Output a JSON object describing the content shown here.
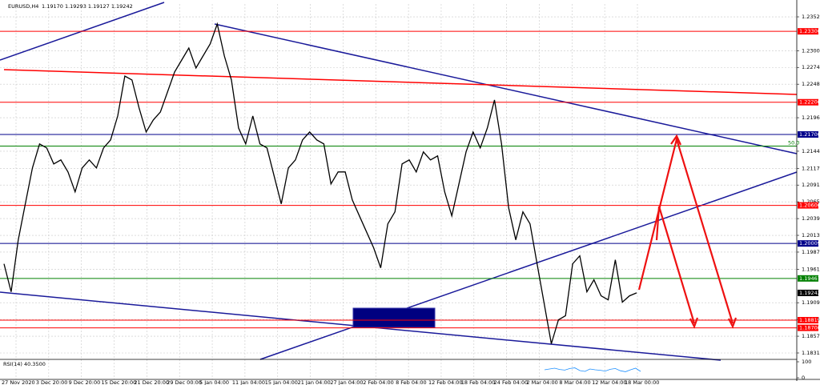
{
  "header": {
    "symbol": "EURUSD,H4",
    "ohlc": "1.19170 1.19293 1.19127 1.19242"
  },
  "chart_data": {
    "type": "line",
    "ylim": [
      1.18223,
      1.23724
    ],
    "yticks": [
      1.23525,
      {
        "value": 1.23,
        "label": "1.23000"
      },
      {
        "value": 1.2274,
        "label": "1.22740"
      },
      {
        "value": 1.2248,
        "label": "1.22480"
      },
      {
        "value": 1.2196,
        "label": "1.21960"
      },
      {
        "value": 1.2144,
        "label": "1.21440"
      },
      1.21175,
      1.20915,
      1.20655,
      1.20395,
      1.20135,
      1.19875,
      {
        "value": 1.1961,
        "label": "1.19610"
      },
      {
        "value": 1.1909,
        "label": "1.19090"
      },
      {
        "value": 1.1883,
        "label": "1.18830"
      },
      {
        "value": 1.1857,
        "label": "1.18570"
      },
      {
        "value": 1.1831,
        "label": "1.18310"
      }
    ],
    "grid": true,
    "x_axis_labels": [
      "27 Nov 2020",
      "3 Dec 20:00",
      "9 Dec 20:00",
      "15 Dec 20:00",
      "21 Dec 20:00",
      "29 Dec 00:00",
      "5 Jan 04:00",
      "11 Jan 04:00",
      "15 Jan 04:00",
      "21 Jan 04:00",
      "27 Jan 04:00",
      "2 Feb 04:00",
      "8 Feb 04:00",
      "12 Feb 04:00",
      "18 Feb 04:00",
      "24 Feb 04:00",
      "2 Mar 04:00",
      "8 Mar 04:00",
      "12 Mar 04:00",
      "18 Mar 00:00"
    ],
    "series": [
      {
        "color": "#000000",
        "values": [
          1.19693,
          1.19259,
          1.20065,
          1.20623,
          1.21181,
          1.21553,
          1.21491,
          1.21243,
          1.21305,
          1.21119,
          1.20809,
          1.21181,
          1.21305,
          1.21181,
          1.21491,
          1.21615,
          1.21987,
          1.22607,
          1.22545,
          1.22111,
          1.21739,
          1.21925,
          1.22049,
          1.22359,
          1.22669,
          1.22855,
          1.23041,
          1.22731,
          1.22917,
          1.23103,
          1.23413,
          1.22917,
          1.22545,
          1.21801,
          1.21553,
          1.21987,
          1.21553,
          1.21491,
          1.21057,
          1.20623,
          1.21181,
          1.21305,
          1.21615,
          1.21739,
          1.21615,
          1.21553,
          1.20933,
          1.21119,
          1.21119,
          1.20685,
          1.20437,
          1.20189,
          1.19941,
          1.19631,
          1.20313,
          1.20499,
          1.21243,
          1.21305,
          1.21119,
          1.21429,
          1.21305,
          1.21367,
          1.20809,
          1.20437,
          1.20933,
          1.21429,
          1.21739,
          1.21491,
          1.21801,
          1.22235,
          1.21553,
          1.20561,
          1.20065,
          1.20499,
          1.20313,
          1.19693,
          1.19073,
          1.18453,
          1.18825,
          1.18887,
          1.19693,
          1.19817,
          1.19259,
          1.19445,
          1.19197,
          1.19135,
          1.19755,
          1.19098,
          1.19197,
          1.19242
        ]
      }
    ],
    "levels": [
      {
        "value": 1.233,
        "label": "1.23300",
        "color": "#ff0000"
      },
      {
        "value": 1.222,
        "label": "1.22200",
        "color": "#ff0000"
      },
      {
        "value": 1.217,
        "label": "1.21700",
        "color": "#00008b"
      },
      {
        "value": 1.206,
        "label": "1.20600",
        "color": "#ff0000"
      },
      {
        "value": 1.20009,
        "label": "1.20009",
        "color": "#00008b"
      },
      {
        "value": 1.19467,
        "label": "1.19467",
        "color": "#008000"
      },
      {
        "value": 1.19242,
        "label": "1.19242",
        "color": "#000000"
      },
      {
        "value": 1.18819,
        "label": "1.18819",
        "color": "#ff0000"
      },
      {
        "value": 1.187,
        "label": "1.18700",
        "color": "#ff0000"
      }
    ],
    "fib": {
      "price": 1.2152,
      "label": "50.0",
      "color": "#008000"
    },
    "rsi": {
      "label": "RSI(14) 40.3500",
      "ylim": [
        0,
        100
      ],
      "yticks": [
        100,
        0
      ],
      "values": [
        50,
        55,
        60,
        52,
        48,
        58,
        62,
        45,
        40,
        55,
        50,
        47,
        42,
        53,
        58,
        44,
        38,
        50,
        60,
        40
      ]
    }
  }
}
